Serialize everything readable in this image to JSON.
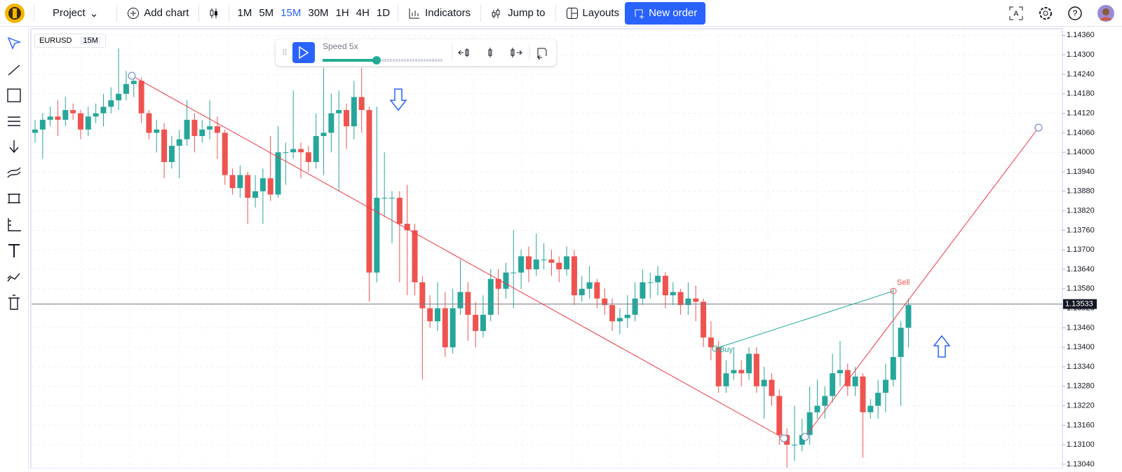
{
  "toolbar": {
    "project": "Project",
    "add_chart": "Add chart",
    "intervals": [
      "1M",
      "5M",
      "15M",
      "30M",
      "1H",
      "4H",
      "1D"
    ],
    "active_interval": "15M",
    "indicators": "Indicators",
    "jump_to": "Jump to",
    "layouts": "Layouts",
    "new_order": "New order"
  },
  "replay": {
    "speed": "Speed 5x"
  },
  "chart": {
    "type": "candlestick",
    "symbol": "EURUSD",
    "interval": "15M",
    "up_color": "#26a69a",
    "down_color": "#ef5350",
    "grid": true,
    "ylim": [
      1.13027,
      1.14378
    ],
    "yticks": [
      {
        "value": 1.1436,
        "label": "1.14360"
      },
      {
        "value": 1.143,
        "label": "1.14300"
      },
      {
        "value": 1.1424,
        "label": "1.14240"
      },
      {
        "value": 1.1418,
        "label": "1.14180"
      },
      {
        "value": 1.1412,
        "label": "1.14120"
      },
      {
        "value": 1.1406,
        "label": "1.14060"
      },
      {
        "value": 1.14,
        "label": "1.14000"
      },
      {
        "value": 1.1394,
        "label": "1.13940"
      },
      {
        "value": 1.1388,
        "label": "1.13880"
      },
      {
        "value": 1.1382,
        "label": "1.13820"
      },
      {
        "value": 1.1376,
        "label": "1.13760"
      },
      {
        "value": 1.137,
        "label": "1.13700"
      },
      {
        "value": 1.1364,
        "label": "1.13640"
      },
      {
        "value": 1.1358,
        "label": "1.13580"
      },
      {
        "value": 1.1352,
        "label": "1.13520"
      },
      {
        "value": 1.1346,
        "label": "1.13460"
      },
      {
        "value": 1.134,
        "label": "1.13400"
      },
      {
        "value": 1.1334,
        "label": "1.13340"
      },
      {
        "value": 1.1328,
        "label": "1.13280"
      },
      {
        "value": 1.1322,
        "label": "1.13220"
      },
      {
        "value": 1.1316,
        "label": "1.13160"
      },
      {
        "value": 1.131,
        "label": "1.13100"
      },
      {
        "value": 1.1304,
        "label": "1.13040"
      }
    ],
    "last_price": {
      "value": 1.13533,
      "label": "1.13533"
    },
    "annotations": {
      "buy": "Buy",
      "sell": "Sell"
    },
    "candles": [
      [
        1.1406,
        1.141,
        1.1403,
        1.1407
      ],
      [
        1.1407,
        1.1412,
        1.1398,
        1.141
      ],
      [
        1.141,
        1.1414,
        1.1408,
        1.1411
      ],
      [
        1.1411,
        1.1416,
        1.1405,
        1.141
      ],
      [
        1.141,
        1.1417,
        1.1408,
        1.1413
      ],
      [
        1.1413,
        1.1415,
        1.141,
        1.1412
      ],
      [
        1.1412,
        1.1413,
        1.1404,
        1.1407
      ],
      [
        1.1407,
        1.1414,
        1.1405,
        1.1411
      ],
      [
        1.1411,
        1.1415,
        1.1409,
        1.1412
      ],
      [
        1.1412,
        1.1418,
        1.1408,
        1.1414
      ],
      [
        1.1414,
        1.142,
        1.1412,
        1.1416
      ],
      [
        1.1416,
        1.1432,
        1.1413,
        1.1418
      ],
      [
        1.1418,
        1.1425,
        1.1416,
        1.1421
      ],
      [
        1.1421,
        1.1424,
        1.1417,
        1.1422
      ],
      [
        1.1422,
        1.1423,
        1.1409,
        1.1412
      ],
      [
        1.1412,
        1.1413,
        1.1404,
        1.1406
      ],
      [
        1.1406,
        1.141,
        1.14,
        1.1407
      ],
      [
        1.1407,
        1.1409,
        1.1392,
        1.1397
      ],
      [
        1.1397,
        1.1405,
        1.1395,
        1.1402
      ],
      [
        1.1402,
        1.1407,
        1.1392,
        1.1404
      ],
      [
        1.1404,
        1.1416,
        1.1402,
        1.141
      ],
      [
        1.141,
        1.1412,
        1.14,
        1.1405
      ],
      [
        1.1405,
        1.141,
        1.1403,
        1.1407
      ],
      [
        1.1407,
        1.1416,
        1.1404,
        1.1408
      ],
      [
        1.1408,
        1.1411,
        1.1398,
        1.1406
      ],
      [
        1.1406,
        1.1407,
        1.139,
        1.1393
      ],
      [
        1.1393,
        1.1395,
        1.1387,
        1.1389
      ],
      [
        1.1389,
        1.1396,
        1.1386,
        1.1393
      ],
      [
        1.1393,
        1.1394,
        1.1378,
        1.1386
      ],
      [
        1.1386,
        1.1393,
        1.1383,
        1.1388
      ],
      [
        1.1388,
        1.1395,
        1.1378,
        1.1392
      ],
      [
        1.1392,
        1.1405,
        1.1385,
        1.1387
      ],
      [
        1.1387,
        1.1408,
        1.1386,
        1.14
      ],
      [
        1.14,
        1.1403,
        1.139,
        1.14
      ],
      [
        1.14,
        1.1419,
        1.1398,
        1.1401
      ],
      [
        1.1401,
        1.1403,
        1.1392,
        1.14
      ],
      [
        1.14,
        1.1402,
        1.1394,
        1.1397
      ],
      [
        1.1397,
        1.1412,
        1.1395,
        1.1405
      ],
      [
        1.1405,
        1.1426,
        1.1393,
        1.1406
      ],
      [
        1.1406,
        1.1418,
        1.14,
        1.1412
      ],
      [
        1.1412,
        1.1419,
        1.1388,
        1.1413
      ],
      [
        1.1413,
        1.1415,
        1.1401,
        1.1408
      ],
      [
        1.1408,
        1.1422,
        1.1404,
        1.1417
      ],
      [
        1.1417,
        1.1426,
        1.1406,
        1.1413
      ],
      [
        1.1413,
        1.1414,
        1.1354,
        1.1363
      ],
      [
        1.1363,
        1.1414,
        1.136,
        1.1386
      ],
      [
        1.1386,
        1.14,
        1.138,
        1.1386
      ],
      [
        1.1386,
        1.1388,
        1.1372,
        1.1386
      ],
      [
        1.1386,
        1.1388,
        1.136,
        1.1378
      ],
      [
        1.1378,
        1.139,
        1.1356,
        1.1376
      ],
      [
        1.1376,
        1.1378,
        1.1356,
        1.136
      ],
      [
        1.136,
        1.1362,
        1.133,
        1.1352
      ],
      [
        1.1352,
        1.1356,
        1.1346,
        1.1348
      ],
      [
        1.1348,
        1.136,
        1.1345,
        1.1352
      ],
      [
        1.1352,
        1.1357,
        1.1337,
        1.134
      ],
      [
        1.134,
        1.1358,
        1.1338,
        1.1352
      ],
      [
        1.1352,
        1.1367,
        1.135,
        1.1357
      ],
      [
        1.1357,
        1.136,
        1.1342,
        1.135
      ],
      [
        1.135,
        1.1354,
        1.134,
        1.1345
      ],
      [
        1.1345,
        1.1356,
        1.1343,
        1.135
      ],
      [
        1.135,
        1.1364,
        1.1348,
        1.1361
      ],
      [
        1.1361,
        1.1364,
        1.135,
        1.1358
      ],
      [
        1.1358,
        1.1366,
        1.1355,
        1.1363
      ],
      [
        1.1363,
        1.1376,
        1.1352,
        1.1363
      ],
      [
        1.1363,
        1.137,
        1.1358,
        1.1368
      ],
      [
        1.1368,
        1.1371,
        1.136,
        1.1364
      ],
      [
        1.1364,
        1.1375,
        1.1362,
        1.1367
      ],
      [
        1.1367,
        1.1372,
        1.1364,
        1.1367
      ],
      [
        1.1367,
        1.137,
        1.1362,
        1.1366
      ],
      [
        1.1366,
        1.1368,
        1.136,
        1.1364
      ],
      [
        1.1364,
        1.1371,
        1.1362,
        1.1368
      ],
      [
        1.1368,
        1.137,
        1.1353,
        1.1356
      ],
      [
        1.1356,
        1.1362,
        1.1354,
        1.1358
      ],
      [
        1.1358,
        1.1365,
        1.1355,
        1.136
      ],
      [
        1.136,
        1.1361,
        1.1352,
        1.1355
      ],
      [
        1.1355,
        1.1358,
        1.135,
        1.1353
      ],
      [
        1.1353,
        1.1355,
        1.1345,
        1.1348
      ],
      [
        1.1348,
        1.1352,
        1.1344,
        1.1349
      ],
      [
        1.1349,
        1.1356,
        1.1346,
        1.135
      ],
      [
        1.135,
        1.136,
        1.1348,
        1.1355
      ],
      [
        1.1355,
        1.1364,
        1.1353,
        1.136
      ],
      [
        1.136,
        1.1363,
        1.1355,
        1.136
      ],
      [
        1.136,
        1.1365,
        1.1356,
        1.1362
      ],
      [
        1.1362,
        1.1363,
        1.1352,
        1.1356
      ],
      [
        1.1356,
        1.136,
        1.1353,
        1.1357
      ],
      [
        1.1357,
        1.1358,
        1.135,
        1.1353
      ],
      [
        1.1353,
        1.136,
        1.135,
        1.1355
      ],
      [
        1.1355,
        1.1359,
        1.1348,
        1.1354
      ],
      [
        1.1354,
        1.1355,
        1.134,
        1.1343
      ],
      [
        1.1343,
        1.1348,
        1.1336,
        1.134
      ],
      [
        1.134,
        1.1342,
        1.1326,
        1.1328
      ],
      [
        1.1328,
        1.1336,
        1.1326,
        1.1332
      ],
      [
        1.1332,
        1.134,
        1.133,
        1.1333
      ],
      [
        1.1333,
        1.1336,
        1.1328,
        1.1332
      ],
      [
        1.1332,
        1.134,
        1.133,
        1.1338
      ],
      [
        1.1338,
        1.134,
        1.1326,
        1.1328
      ],
      [
        1.1328,
        1.1334,
        1.1318,
        1.133
      ],
      [
        1.133,
        1.1332,
        1.1322,
        1.1325
      ],
      [
        1.1325,
        1.1327,
        1.131,
        1.1313
      ],
      [
        1.1313,
        1.1315,
        1.1303,
        1.131
      ],
      [
        1.131,
        1.1322,
        1.1305,
        1.131
      ],
      [
        1.131,
        1.1318,
        1.1308,
        1.1313
      ],
      [
        1.1313,
        1.1328,
        1.131,
        1.132
      ],
      [
        1.132,
        1.133,
        1.1318,
        1.1322
      ],
      [
        1.1322,
        1.1328,
        1.1318,
        1.1325
      ],
      [
        1.1325,
        1.1338,
        1.1323,
        1.1332
      ],
      [
        1.1332,
        1.1342,
        1.1328,
        1.1333
      ],
      [
        1.1333,
        1.1335,
        1.1325,
        1.1328
      ],
      [
        1.1328,
        1.1334,
        1.1325,
        1.1331
      ],
      [
        1.1331,
        1.1332,
        1.1306,
        1.132
      ],
      [
        1.132,
        1.1324,
        1.1318,
        1.1322
      ],
      [
        1.1322,
        1.133,
        1.1318,
        1.1326
      ],
      [
        1.1326,
        1.1335,
        1.132,
        1.133
      ],
      [
        1.133,
        1.1358,
        1.1328,
        1.1337
      ],
      [
        1.1337,
        1.1348,
        1.1322,
        1.1346
      ],
      [
        1.1346,
        1.1355,
        1.134,
        1.1353
      ]
    ]
  }
}
